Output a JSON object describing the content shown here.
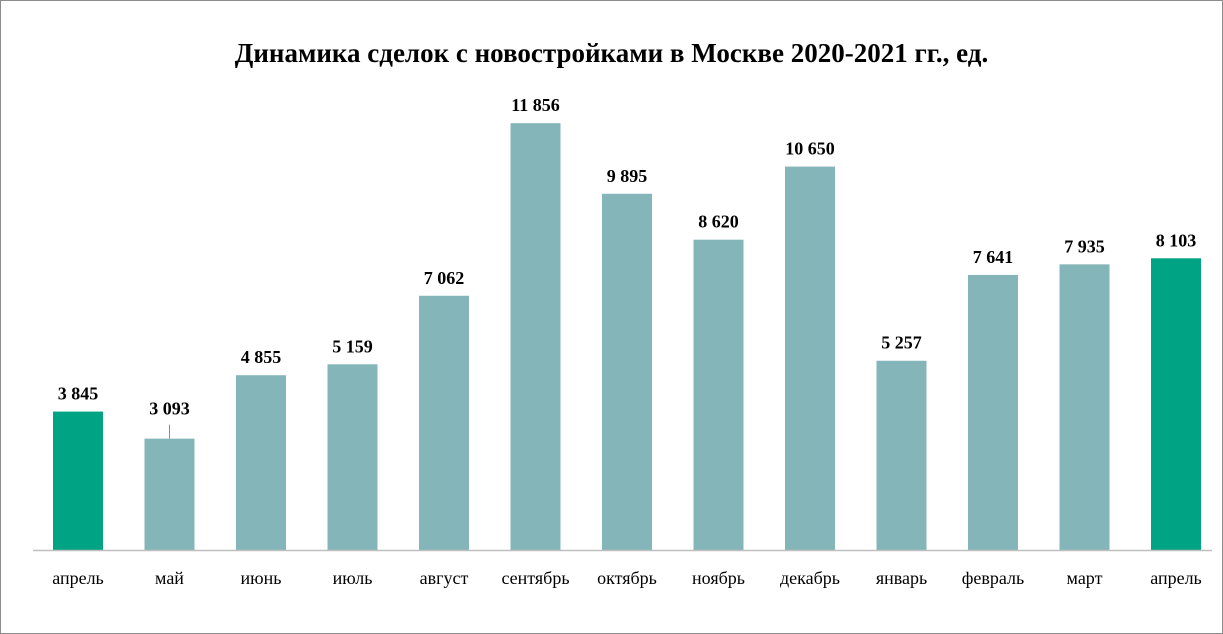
{
  "chart_data": {
    "type": "bar",
    "title": "Динамика сделок с новостройками в Москве 2020-2021 гг., ед.",
    "categories": [
      "апрель",
      "май",
      "июнь",
      "июль",
      "август",
      "сентябрь",
      "октябрь",
      "ноябрь",
      "декабрь",
      "январь",
      "февраль",
      "март",
      "апрель"
    ],
    "values": [
      3845,
      3093,
      4855,
      5159,
      7062,
      11856,
      9895,
      8620,
      10650,
      5257,
      7641,
      7935,
      8103
    ],
    "value_labels": [
      "3 845",
      "3 093",
      "4 855",
      "5 159",
      "7 062",
      "11 856",
      "9 895",
      "8 620",
      "10 650",
      "5 257",
      "7 641",
      "7 935",
      "8 103"
    ],
    "highlighted": [
      0,
      12
    ],
    "colors": {
      "default": "#84b5b9",
      "highlight": "#00a383",
      "axis": "#bfbfbf"
    },
    "ylim": [
      0,
      12000
    ],
    "grid": false,
    "legend": "none"
  }
}
